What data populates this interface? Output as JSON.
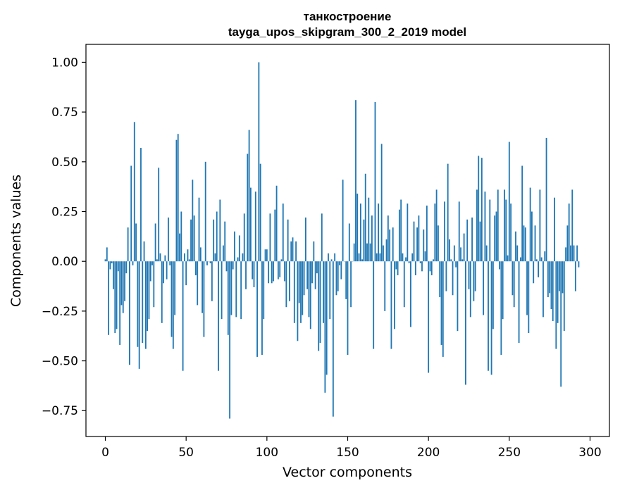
{
  "chart_data": {
    "type": "bar",
    "title": "танкостроение",
    "subtitle": "tayga_upos_skipgram_300_2_2019 model",
    "xlabel": "Vector components",
    "ylabel": "Components values",
    "xlim": [
      -12,
      312
    ],
    "ylim": [
      -0.88,
      1.09
    ],
    "xticks": [
      0,
      50,
      100,
      150,
      200,
      250,
      300
    ],
    "yticks": [
      -0.75,
      -0.5,
      -0.25,
      0.0,
      0.25,
      0.5,
      0.75,
      1.0
    ],
    "ytick_labels": [
      "−0.75",
      "−0.50",
      "−0.25",
      "0.00",
      "0.25",
      "0.50",
      "0.75",
      "1.00"
    ],
    "bar_color": "#1f77b4",
    "grid": false,
    "values": [
      0.01,
      0.07,
      -0.37,
      -0.04,
      -0.01,
      -0.14,
      -0.36,
      -0.34,
      -0.05,
      -0.42,
      -0.22,
      -0.26,
      -0.2,
      -0.06,
      0.17,
      -0.52,
      0.48,
      -0.02,
      0.7,
      0.19,
      -0.43,
      -0.54,
      0.57,
      -0.41,
      0.1,
      -0.44,
      -0.35,
      -0.29,
      -0.1,
      -0.02,
      -0.23,
      0.19,
      0.01,
      0.47,
      0.04,
      -0.31,
      -0.11,
      0.03,
      -0.09,
      0.22,
      -0.02,
      -0.38,
      -0.44,
      -0.27,
      0.61,
      0.64,
      0.14,
      0.25,
      -0.55,
      0.04,
      -0.12,
      0.06,
      0.01,
      0.21,
      0.41,
      0.23,
      -0.07,
      -0.22,
      0.32,
      0.07,
      -0.26,
      -0.38,
      0.5,
      -0.02,
      0.0,
      -0.01,
      -0.2,
      0.21,
      0.04,
      0.25,
      -0.55,
      0.31,
      -0.29,
      0.08,
      0.2,
      -0.05,
      -0.37,
      -0.79,
      -0.27,
      -0.04,
      0.15,
      -0.28,
      0.02,
      0.13,
      -0.29,
      0.04,
      0.24,
      -0.14,
      0.54,
      0.66,
      0.37,
      -0.09,
      -0.13,
      0.35,
      -0.48,
      1.0,
      0.49,
      -0.47,
      -0.29,
      0.06,
      0.06,
      -0.11,
      0.24,
      -0.11,
      -0.1,
      0.26,
      0.38,
      -0.09,
      -0.08,
      0.01,
      0.29,
      -0.1,
      -0.23,
      0.21,
      -0.2,
      0.1,
      0.12,
      -0.31,
      0.1,
      -0.4,
      -0.21,
      -0.31,
      -0.27,
      -0.17,
      0.22,
      -0.14,
      -0.28,
      -0.34,
      -0.11,
      0.1,
      -0.14,
      -0.06,
      -0.45,
      -0.41,
      0.24,
      -0.31,
      -0.66,
      -0.57,
      0.04,
      -0.29,
      0.01,
      -0.78,
      0.04,
      -0.17,
      -0.15,
      -0.02,
      -0.09,
      0.41,
      0.0,
      -0.19,
      -0.47,
      0.19,
      -0.23,
      0.0,
      0.09,
      0.81,
      0.34,
      0.04,
      0.29,
      0.01,
      0.21,
      0.44,
      0.09,
      0.32,
      0.09,
      0.23,
      -0.44,
      0.8,
      0.04,
      0.29,
      0.04,
      0.59,
      0.08,
      -0.25,
      0.11,
      0.23,
      0.16,
      -0.44,
      0.17,
      -0.34,
      -0.04,
      -0.07,
      0.26,
      0.31,
      0.04,
      -0.23,
      0.02,
      0.29,
      -0.01,
      -0.33,
      0.04,
      0.2,
      -0.07,
      0.17,
      0.23,
      -0.01,
      -0.05,
      0.16,
      0.05,
      0.28,
      -0.56,
      -0.05,
      -0.07,
      0.01,
      0.29,
      0.36,
      0.18,
      -0.18,
      -0.42,
      -0.48,
      0.3,
      -0.15,
      0.49,
      0.11,
      0.01,
      -0.17,
      0.08,
      -0.03,
      -0.35,
      0.3,
      0.07,
      0.01,
      0.14,
      -0.62,
      0.21,
      -0.14,
      -0.28,
      0.22,
      -0.2,
      -0.15,
      0.36,
      0.53,
      0.2,
      0.52,
      -0.27,
      0.35,
      0.08,
      -0.55,
      0.31,
      -0.57,
      -0.34,
      0.23,
      0.25,
      0.36,
      -0.04,
      -0.47,
      -0.29,
      0.36,
      0.31,
      0.03,
      0.6,
      0.29,
      -0.17,
      -0.23,
      0.15,
      0.08,
      -0.41,
      0.02,
      0.48,
      0.18,
      0.17,
      -0.27,
      -0.36,
      0.37,
      0.25,
      -0.11,
      0.18,
      0.01,
      -0.08,
      0.36,
      0.02,
      -0.28,
      0.05,
      0.62,
      -0.18,
      -0.16,
      -0.24,
      -0.3,
      0.32,
      -0.44,
      -0.31,
      -0.15,
      -0.63,
      -0.16,
      -0.35,
      0.07,
      0.18,
      0.29,
      0.08,
      0.36,
      0.08,
      -0.15,
      0.08,
      -0.03
    ]
  }
}
